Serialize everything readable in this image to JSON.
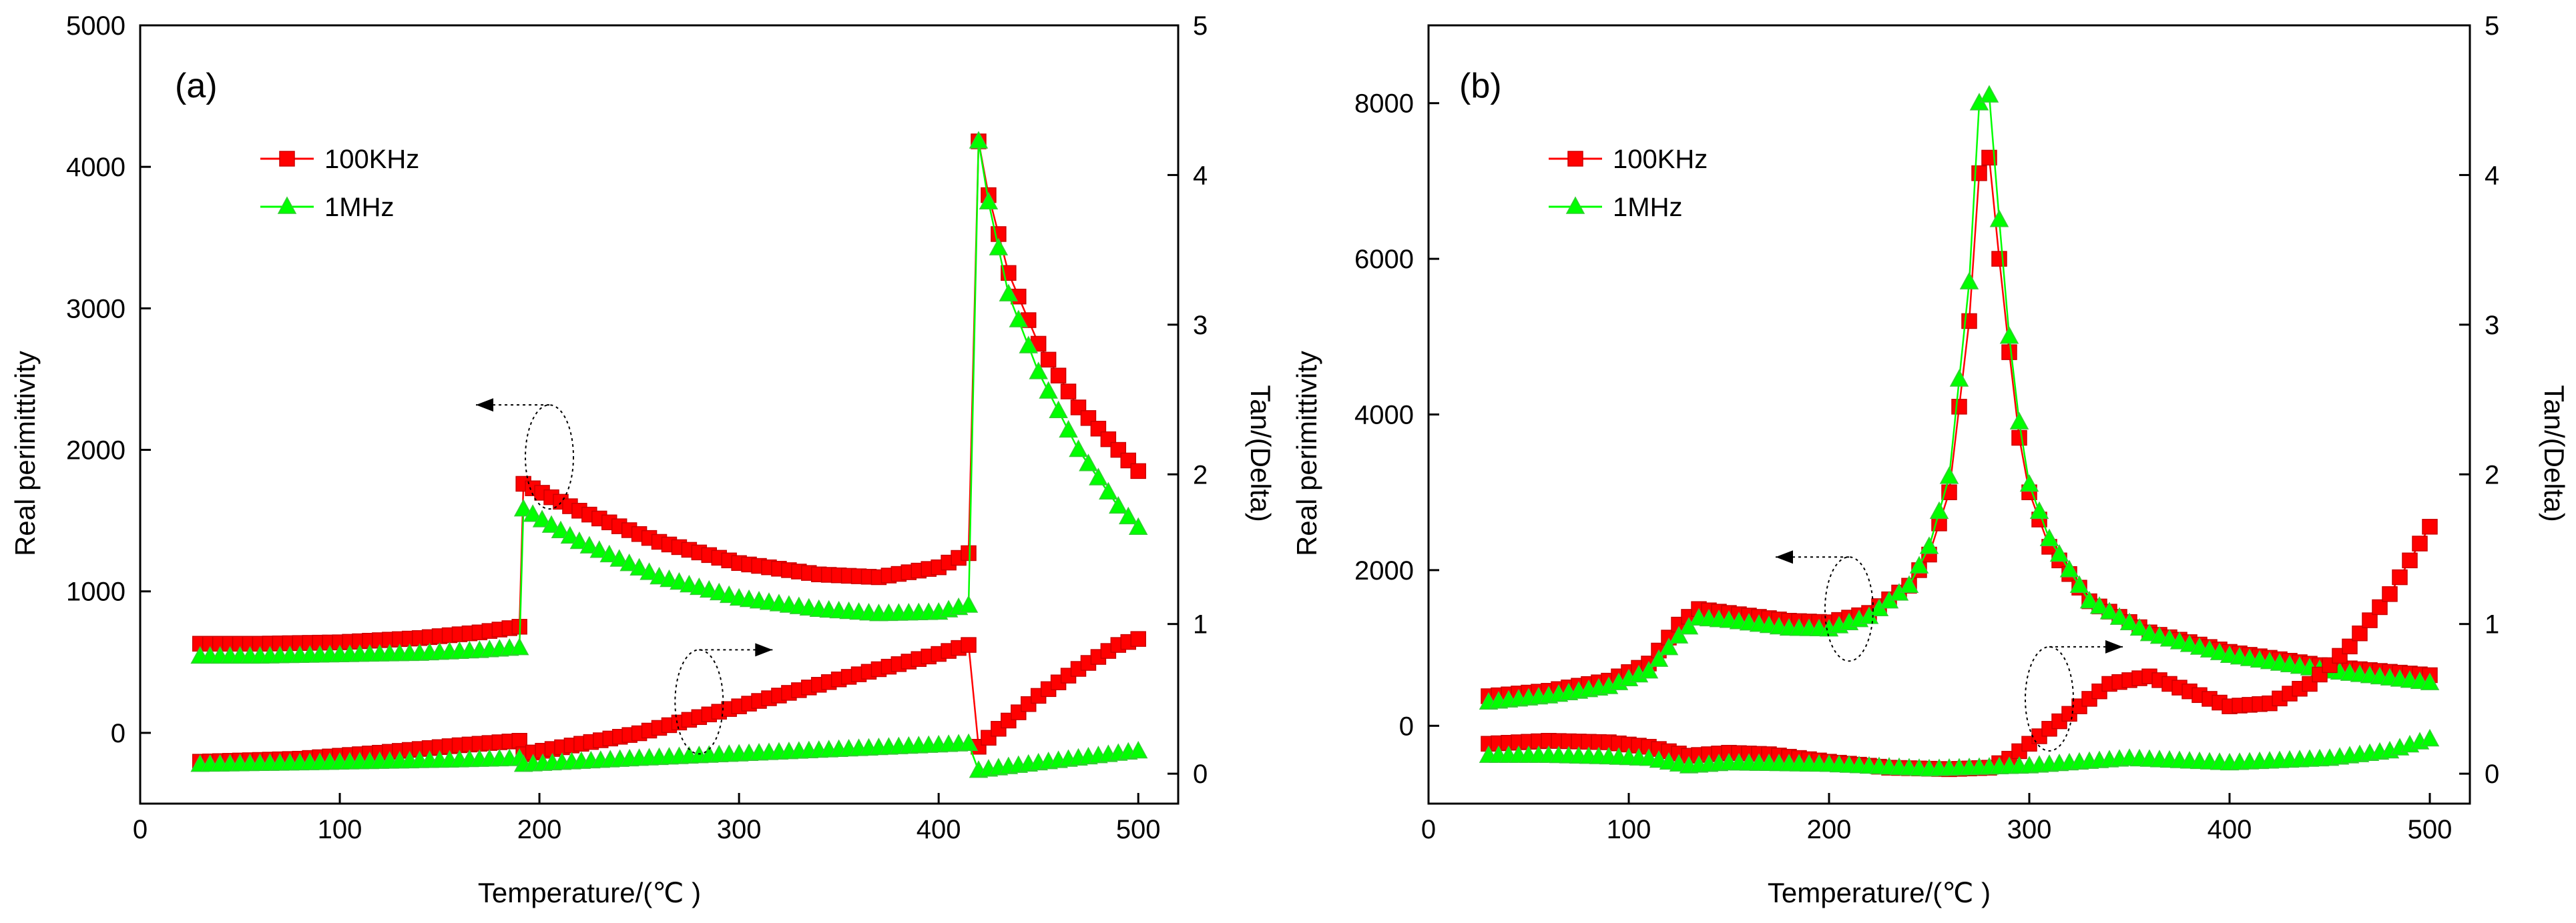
{
  "colors": {
    "freq_100k": "#ff0000",
    "freq_1m": "#00ff00",
    "marker_edge_100k": "#cc0000",
    "marker_edge_1m": "#33cc33",
    "axis": "#000000"
  },
  "chart_data": [
    {
      "type": "line",
      "panel_label": "(a)",
      "xlabel": "Temperature/(℃ )",
      "ylabel": "Real perimittivity",
      "y2label": "Tan/(Delta)",
      "xlim": [
        0,
        520
      ],
      "ylim": [
        -500,
        5000
      ],
      "y2lim": [
        -0.2,
        5
      ],
      "xticks": [
        0,
        100,
        200,
        300,
        400,
        500
      ],
      "yticks": [
        0,
        1000,
        2000,
        3000,
        4000,
        5000
      ],
      "y2ticks": [
        0,
        1,
        2,
        3,
        4,
        5
      ],
      "legend": {
        "position": "upper-left",
        "entries": [
          "100KHz",
          "1MHz"
        ]
      },
      "series": [
        {
          "name": "100KHz",
          "axis": "left",
          "marker": "square",
          "x": [
            30,
            60,
            100,
            140,
            170,
            190,
            192,
            220,
            260,
            300,
            340,
            370,
            400,
            415,
            420,
            425,
            435,
            450,
            470,
            490,
            500
          ],
          "y": [
            630,
            630,
            640,
            670,
            710,
            750,
            1760,
            1570,
            1350,
            1200,
            1120,
            1100,
            1170,
            1270,
            4180,
            3800,
            3250,
            2750,
            2300,
            2000,
            1850
          ]
        },
        {
          "name": "1MHz",
          "axis": "left",
          "marker": "triangle",
          "x": [
            30,
            60,
            100,
            140,
            170,
            190,
            192,
            220,
            260,
            300,
            340,
            370,
            400,
            415,
            420,
            425,
            435,
            450,
            470,
            490,
            500
          ],
          "y": [
            540,
            540,
            550,
            560,
            580,
            600,
            1580,
            1350,
            1100,
            950,
            870,
            840,
            850,
            900,
            4180,
            3750,
            3100,
            2550,
            2000,
            1600,
            1450
          ]
        },
        {
          "name": "100KHz",
          "axis": "right",
          "marker": "square",
          "x": [
            30,
            80,
            120,
            160,
            190,
            192,
            250,
            300,
            350,
            400,
            415,
            420,
            430,
            450,
            470,
            490,
            500
          ],
          "y": [
            0.08,
            0.1,
            0.14,
            0.19,
            0.22,
            0.13,
            0.27,
            0.45,
            0.63,
            0.8,
            0.86,
            0.18,
            0.3,
            0.52,
            0.7,
            0.86,
            0.9
          ]
        },
        {
          "name": "1MHz",
          "axis": "right",
          "marker": "triangle",
          "x": [
            30,
            80,
            120,
            160,
            190,
            192,
            250,
            300,
            350,
            400,
            415,
            420,
            450,
            500
          ],
          "y": [
            0.06,
            0.07,
            0.08,
            0.09,
            0.1,
            0.06,
            0.1,
            0.13,
            0.16,
            0.19,
            0.2,
            0.02,
            0.07,
            0.15
          ]
        }
      ],
      "annotations": [
        {
          "type": "ellipse-arrow",
          "at": [
            205,
            1950
          ],
          "arrow_direction": "left",
          "axis": "left"
        },
        {
          "type": "ellipse-arrow",
          "at": [
            280,
            0.48
          ],
          "arrow_direction": "right",
          "axis": "right"
        }
      ]
    },
    {
      "type": "line",
      "panel_label": "(b)",
      "xlabel": "Temperature/(℃ )",
      "ylabel": "Real perimittivity",
      "y2label": "Tan/(Delta)",
      "xlim": [
        0,
        520
      ],
      "ylim": [
        -1000,
        9000
      ],
      "y2lim": [
        -0.2,
        5
      ],
      "xticks": [
        0,
        100,
        200,
        300,
        400,
        500
      ],
      "yticks": [
        0,
        2000,
        4000,
        6000,
        8000
      ],
      "y2ticks": [
        0,
        1,
        2,
        3,
        4,
        5
      ],
      "legend": {
        "position": "upper-left",
        "entries": [
          "100KHz",
          "1MHz"
        ]
      },
      "series": [
        {
          "name": "100KHz",
          "axis": "left",
          "marker": "square",
          "x": [
            30,
            60,
            90,
            110,
            125,
            135,
            150,
            180,
            200,
            220,
            240,
            250,
            260,
            270,
            275,
            280,
            285,
            290,
            295,
            300,
            310,
            330,
            360,
            400,
            450,
            500
          ],
          "y": [
            380,
            450,
            580,
            800,
            1300,
            1500,
            1450,
            1350,
            1330,
            1450,
            1800,
            2200,
            3000,
            5200,
            7100,
            7300,
            6000,
            4800,
            3700,
            3000,
            2300,
            1600,
            1200,
            950,
            760,
            650
          ]
        },
        {
          "name": "1MHz",
          "axis": "left",
          "marker": "triangle",
          "x": [
            30,
            60,
            90,
            110,
            125,
            135,
            150,
            180,
            200,
            220,
            240,
            250,
            260,
            270,
            275,
            280,
            285,
            290,
            295,
            300,
            310,
            330,
            360,
            400,
            450,
            500
          ],
          "y": [
            300,
            380,
            500,
            700,
            1150,
            1380,
            1350,
            1250,
            1240,
            1400,
            1800,
            2300,
            3200,
            5700,
            8000,
            8100,
            6500,
            5000,
            3900,
            3100,
            2400,
            1600,
            1180,
            900,
            700,
            550
          ]
        },
        {
          "name": "100KHz",
          "axis": "right",
          "marker": "square",
          "x": [
            30,
            60,
            90,
            110,
            130,
            150,
            170,
            200,
            230,
            260,
            280,
            290,
            300,
            320,
            340,
            360,
            380,
            400,
            420,
            440,
            460,
            480,
            500
          ],
          "y": [
            0.2,
            0.22,
            0.21,
            0.18,
            0.12,
            0.14,
            0.13,
            0.08,
            0.04,
            0.03,
            0.04,
            0.1,
            0.2,
            0.4,
            0.6,
            0.65,
            0.55,
            0.45,
            0.47,
            0.6,
            0.85,
            1.2,
            1.65
          ]
        },
        {
          "name": "1MHz",
          "axis": "right",
          "marker": "triangle",
          "x": [
            30,
            60,
            90,
            110,
            130,
            150,
            200,
            250,
            300,
            350,
            400,
            450,
            480,
            500
          ],
          "y": [
            0.12,
            0.12,
            0.11,
            0.1,
            0.05,
            0.07,
            0.06,
            0.03,
            0.05,
            0.1,
            0.07,
            0.1,
            0.15,
            0.23
          ]
        }
      ],
      "annotations": [
        {
          "type": "ellipse-arrow",
          "at": [
            210,
            1500
          ],
          "arrow_direction": "left",
          "axis": "left"
        },
        {
          "type": "ellipse-arrow",
          "at": [
            310,
            0.5
          ],
          "arrow_direction": "right",
          "axis": "right"
        }
      ]
    }
  ]
}
